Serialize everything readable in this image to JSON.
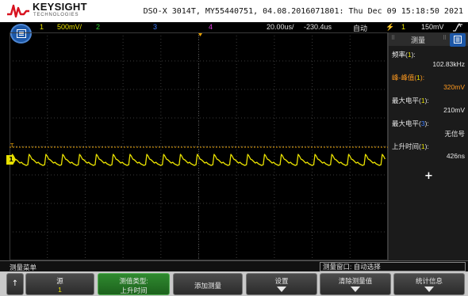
{
  "header": {
    "brand": "KEYSIGHT",
    "brand_sub": "TECHNOLOGIES",
    "instrument_info": "DSO-X 3014T, MY55440751, 04.08.2016071801: Thu Dec 09 15:18:50 2021"
  },
  "channel_bar": {
    "ch1_num": "1",
    "ch1_scale": "500mV/",
    "ch2_num": "2",
    "ch3_num": "3",
    "ch4_num": "4",
    "time_scale": "20.00us/",
    "time_delay": "-230.4us",
    "trigger_mode": "自动",
    "trigger_channel": "1",
    "trigger_level": "150mV"
  },
  "colors": {
    "ch1": "#e8e000",
    "ch2": "#2fd22f",
    "ch3": "#3b7cff",
    "ch4": "#e040e0",
    "accent_blue": "#1d58a8",
    "value_highlight": "#ff9a1f"
  },
  "grid_markers": {
    "trigger_marker": "T",
    "ch1_ground_marker": "1"
  },
  "measurements_panel": {
    "title": "测量",
    "items": [
      {
        "label": "频率(1):",
        "value": "102.83kHz"
      },
      {
        "label": "峰-峰值(1):",
        "value": "320mV"
      },
      {
        "label": "最大电平(1):",
        "value": "210mV"
      },
      {
        "label": "最大电平(3):",
        "value": "无信号"
      },
      {
        "label": "上升时间(1):",
        "value": "426ns"
      }
    ],
    "add_icon": "plus-icon"
  },
  "status_row": {
    "menu_title": "测量菜单",
    "meas_window": "测量窗口: 自动选择"
  },
  "softkeys": {
    "back_icon": "up-arrow-icon",
    "source_label": "源",
    "source_value": "1",
    "type_label": "测值类型:",
    "type_value": "上升时间",
    "add_label": "添加测量",
    "settings_label": "设置",
    "clear_label": "清除测量值",
    "stats_label": "统计信息"
  }
}
